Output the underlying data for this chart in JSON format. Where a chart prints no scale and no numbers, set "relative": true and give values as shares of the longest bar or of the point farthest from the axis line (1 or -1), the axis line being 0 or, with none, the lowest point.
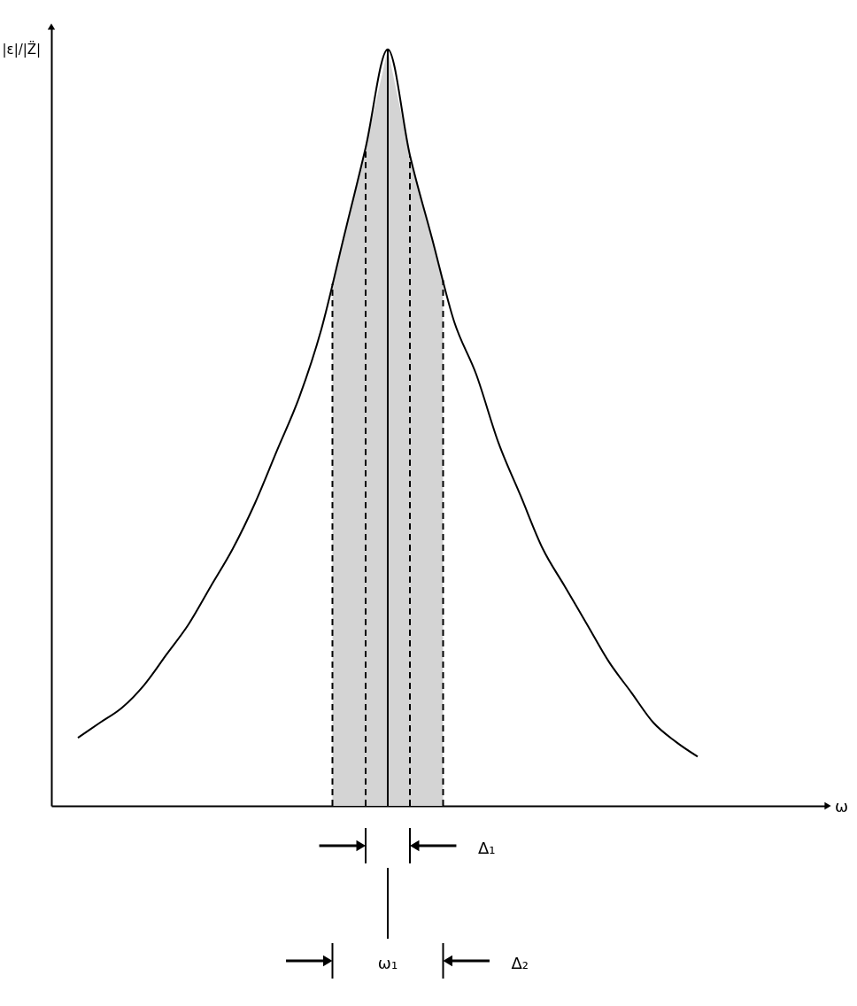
{
  "chart_data": {
    "type": "line",
    "relative": true,
    "ylabel": "|ε|/|Z̈|",
    "tick_labels": false,
    "categories": [
      null,
      null,
      null,
      null,
      null,
      null,
      null,
      null,
      null,
      null,
      null,
      null,
      null,
      null,
      null,
      null,
      null,
      null,
      null,
      null,
      null,
      null,
      null,
      null,
      null,
      null,
      null,
      null,
      null
    ],
    "series": [
      {
        "color": "#000000",
        "values": [
          0.09,
          0.11,
          0.13,
          0.16,
          0.2,
          0.24,
          0.29,
          0.34,
          0.4,
          0.47,
          0.54,
          0.63,
          0.75,
          0.87,
          1,
          0.86,
          0.75,
          0.64,
          0.57,
          0.48,
          0.41,
          0.34,
          0.29,
          0.24,
          0.19,
          0.15,
          0.11,
          0.085,
          0.065
        ]
      }
    ],
    "annotations": [
      "Δ₁",
      "ω₁",
      "Δ₂",
      "ω"
    ]
  }
}
